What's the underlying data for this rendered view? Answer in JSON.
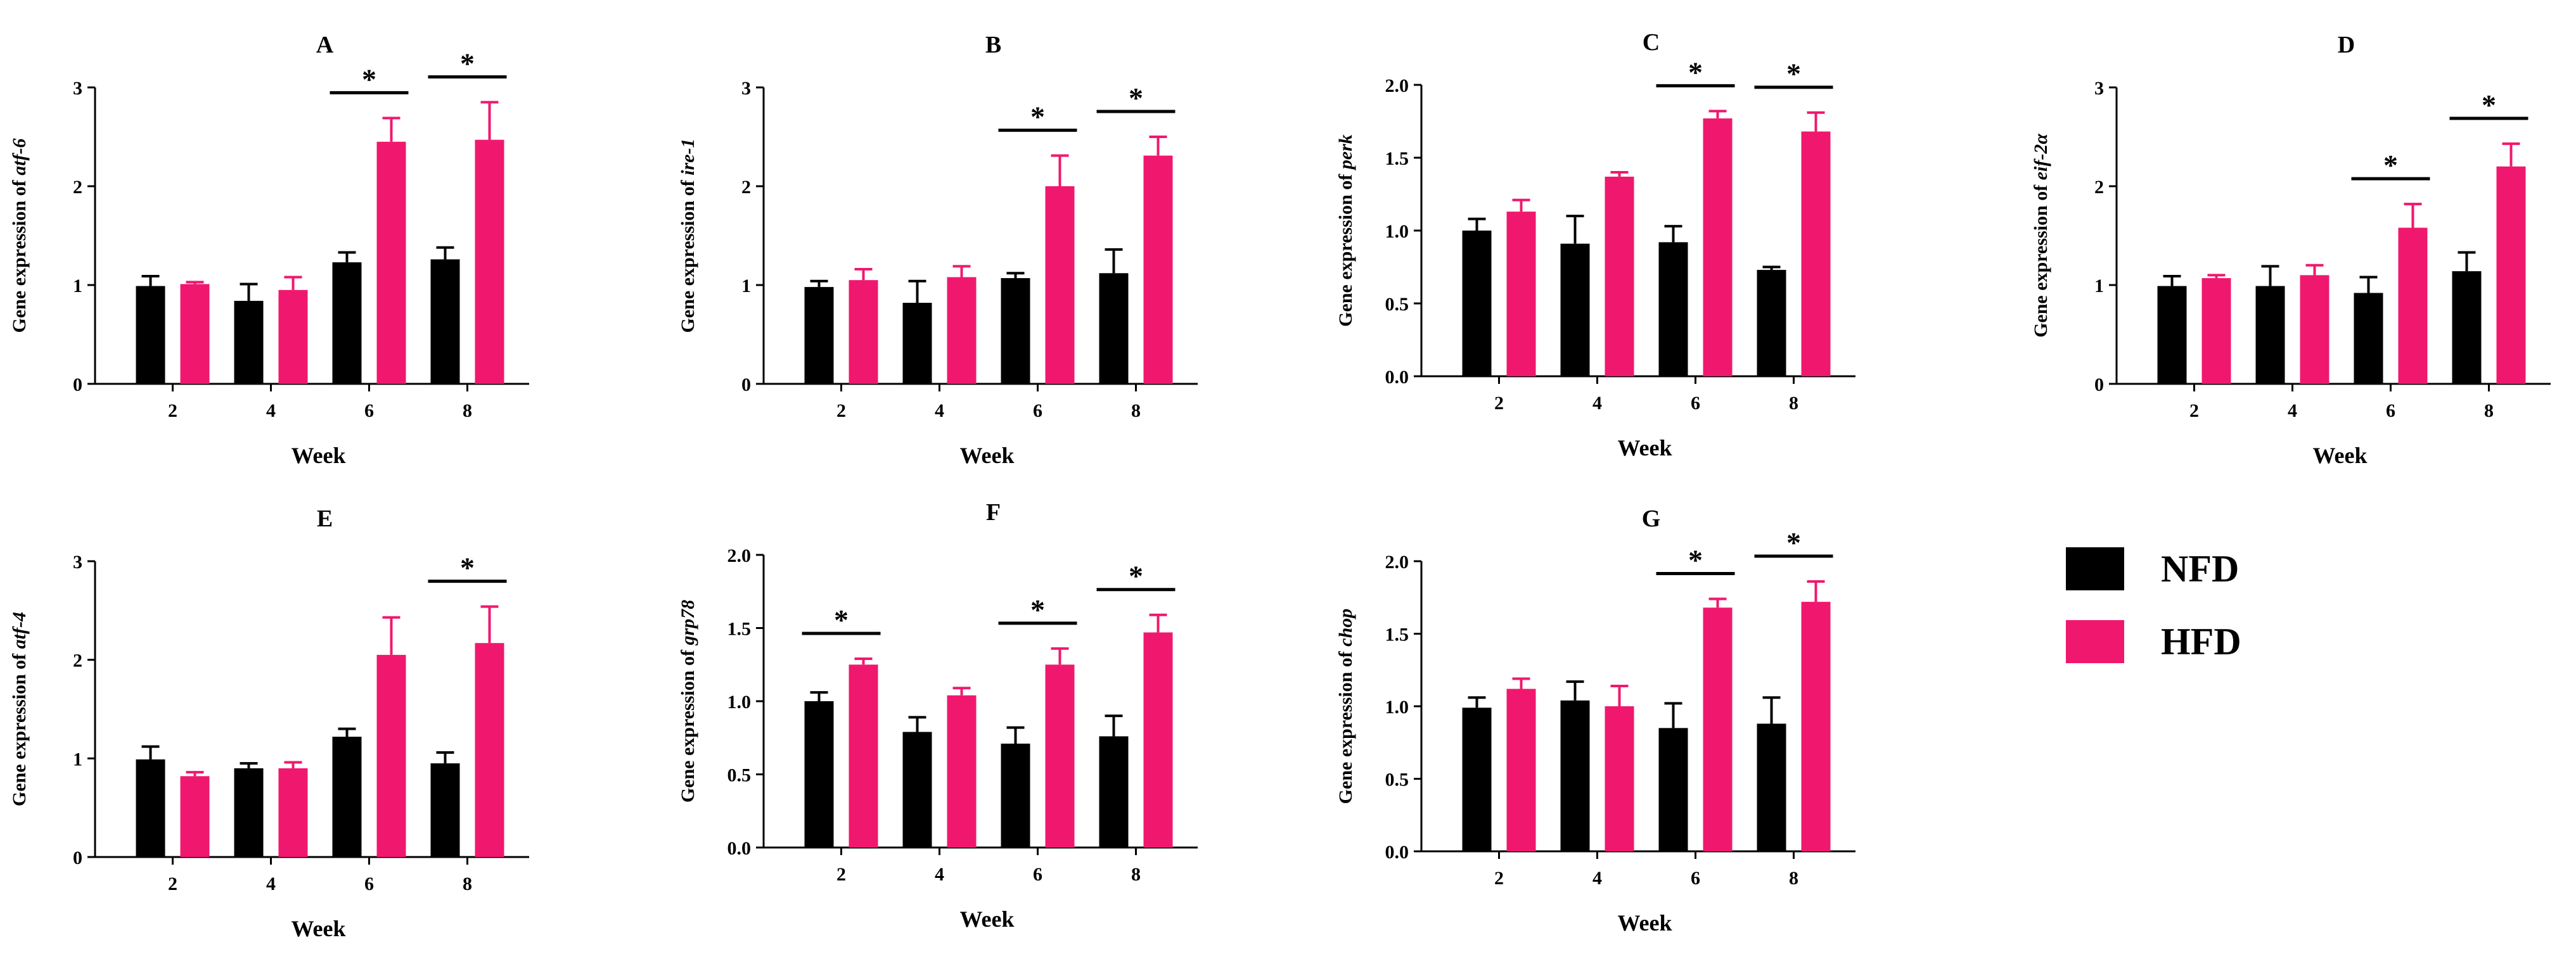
{
  "figure": {
    "legend": [
      {
        "name": "NFD",
        "color": "#000000"
      },
      {
        "name": "HFD",
        "color": "#f0186e"
      }
    ]
  },
  "chart_data": [
    {
      "type": "bar",
      "panel": "A",
      "ylabel_prefix": "Gene expression of ",
      "gene": "atf-6",
      "xlabel": "Week",
      "categories": [
        "2",
        "4",
        "6",
        "8"
      ],
      "ylim": [
        0,
        3
      ],
      "yticks": [
        "0",
        "1",
        "2",
        "3"
      ],
      "series": [
        {
          "name": "NFD",
          "values": [
            0.99,
            0.84,
            1.23,
            1.26
          ],
          "errors": [
            0.1,
            0.17,
            0.1,
            0.12
          ]
        },
        {
          "name": "HFD",
          "values": [
            1.01,
            0.95,
            2.45,
            2.47
          ],
          "errors": [
            0.02,
            0.13,
            0.24,
            0.38
          ]
        }
      ],
      "significance": [
        "",
        "",
        "*",
        "*"
      ]
    },
    {
      "type": "bar",
      "panel": "B",
      "ylabel_prefix": "Gene expression of ",
      "gene": "ire-1",
      "xlabel": "Week",
      "categories": [
        "2",
        "4",
        "6",
        "8"
      ],
      "ylim": [
        0,
        3
      ],
      "yticks": [
        "0",
        "1",
        "2",
        "3"
      ],
      "series": [
        {
          "name": "NFD",
          "values": [
            0.98,
            0.82,
            1.07,
            1.12
          ],
          "errors": [
            0.06,
            0.22,
            0.05,
            0.24
          ]
        },
        {
          "name": "HFD",
          "values": [
            1.05,
            1.08,
            2.0,
            2.31
          ],
          "errors": [
            0.11,
            0.11,
            0.31,
            0.19
          ]
        }
      ],
      "significance": [
        "",
        "",
        "*",
        "*"
      ]
    },
    {
      "type": "bar",
      "panel": "C",
      "ylabel_prefix": "Gene expression of ",
      "gene": "perk",
      "xlabel": "Week",
      "categories": [
        "2",
        "4",
        "6",
        "8"
      ],
      "ylim": [
        0,
        2
      ],
      "yticks": [
        "0.0",
        "0.5",
        "1.0",
        "1.5",
        "2.0"
      ],
      "series": [
        {
          "name": "NFD",
          "values": [
            1.0,
            0.91,
            0.92,
            0.73
          ],
          "errors": [
            0.08,
            0.19,
            0.11,
            0.02
          ]
        },
        {
          "name": "HFD",
          "values": [
            1.13,
            1.37,
            1.77,
            1.68
          ],
          "errors": [
            0.08,
            0.03,
            0.05,
            0.13
          ]
        }
      ],
      "significance": [
        "",
        "",
        "*",
        "*"
      ]
    },
    {
      "type": "bar",
      "panel": "D",
      "ylabel_prefix": "Gene expression of ",
      "gene": "eif-2α",
      "xlabel": "Week",
      "categories": [
        "2",
        "4",
        "6",
        "8"
      ],
      "ylim": [
        0,
        3
      ],
      "yticks": [
        "0",
        "1",
        "2",
        "3"
      ],
      "series": [
        {
          "name": "NFD",
          "values": [
            0.99,
            0.99,
            0.92,
            1.14
          ],
          "errors": [
            0.1,
            0.2,
            0.16,
            0.19
          ]
        },
        {
          "name": "HFD",
          "values": [
            1.07,
            1.1,
            1.58,
            2.2
          ],
          "errors": [
            0.03,
            0.1,
            0.24,
            0.23
          ]
        }
      ],
      "significance": [
        "",
        "",
        "*",
        "*"
      ]
    },
    {
      "type": "bar",
      "panel": "E",
      "ylabel_prefix": "Gene expression of ",
      "gene": "atf-4",
      "xlabel": "Week",
      "categories": [
        "2",
        "4",
        "6",
        "8"
      ],
      "ylim": [
        0,
        3
      ],
      "yticks": [
        "0",
        "1",
        "2",
        "3"
      ],
      "series": [
        {
          "name": "NFD",
          "values": [
            0.99,
            0.9,
            1.22,
            0.95
          ],
          "errors": [
            0.13,
            0.05,
            0.08,
            0.11
          ]
        },
        {
          "name": "HFD",
          "values": [
            0.82,
            0.9,
            2.05,
            2.17
          ],
          "errors": [
            0.04,
            0.06,
            0.38,
            0.37
          ]
        }
      ],
      "significance": [
        "",
        "",
        "",
        "*"
      ]
    },
    {
      "type": "bar",
      "panel": "F",
      "ylabel_prefix": "Gene expression of ",
      "gene": "grp78",
      "xlabel": "Week",
      "categories": [
        "2",
        "4",
        "6",
        "8"
      ],
      "ylim": [
        0,
        2
      ],
      "yticks": [
        "0.0",
        "0.5",
        "1.0",
        "1.5",
        "2.0"
      ],
      "series": [
        {
          "name": "NFD",
          "values": [
            1.0,
            0.79,
            0.71,
            0.76
          ],
          "errors": [
            0.06,
            0.1,
            0.11,
            0.14
          ]
        },
        {
          "name": "HFD",
          "values": [
            1.25,
            1.04,
            1.25,
            1.47
          ],
          "errors": [
            0.04,
            0.05,
            0.11,
            0.12
          ]
        }
      ],
      "significance": [
        "*",
        "",
        "*",
        "*"
      ]
    },
    {
      "type": "bar",
      "panel": "G",
      "ylabel_prefix": "Gene expression of ",
      "gene": "chop",
      "xlabel": "Week",
      "categories": [
        "2",
        "4",
        "6",
        "8"
      ],
      "ylim": [
        0,
        2
      ],
      "yticks": [
        "0.0",
        "0.5",
        "1.0",
        "1.5",
        "2.0"
      ],
      "series": [
        {
          "name": "NFD",
          "values": [
            0.99,
            1.04,
            0.85,
            0.88
          ],
          "errors": [
            0.07,
            0.13,
            0.17,
            0.18
          ]
        },
        {
          "name": "HFD",
          "values": [
            1.12,
            1.0,
            1.68,
            1.72
          ],
          "errors": [
            0.07,
            0.14,
            0.06,
            0.14
          ]
        }
      ],
      "significance": [
        "",
        "",
        "*",
        "*"
      ]
    }
  ]
}
